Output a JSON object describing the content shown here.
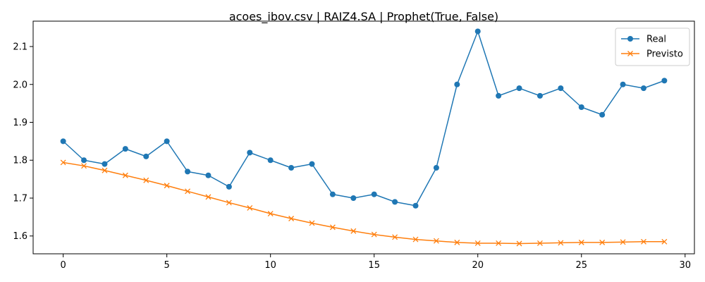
{
  "chart_data": {
    "type": "line",
    "title": "acoes_ibov.csv | RAIZ4.SA | Prophet(True, False)",
    "xlabel": "",
    "ylabel": "",
    "x": [
      0,
      1,
      2,
      3,
      4,
      5,
      6,
      7,
      8,
      9,
      10,
      11,
      12,
      13,
      14,
      15,
      16,
      17,
      18,
      19,
      20,
      21,
      22,
      23,
      24,
      25,
      26,
      27,
      28,
      29
    ],
    "xlim": [
      -1.45,
      30.45
    ],
    "ylim": [
      1.553,
      2.167
    ],
    "xticks": [
      0,
      5,
      10,
      15,
      20,
      25,
      30
    ],
    "xtick_labels": [
      "0",
      "5",
      "10",
      "15",
      "20",
      "25",
      "30"
    ],
    "yticks": [
      1.6,
      1.7,
      1.8,
      1.9,
      2.0,
      2.1
    ],
    "ytick_labels": [
      "1.6",
      "1.7",
      "1.8",
      "1.9",
      "2.0",
      "2.1"
    ],
    "grid": false,
    "legend_position": "top-right",
    "series": [
      {
        "name": "Real",
        "color": "#1f77b4",
        "marker": "circle",
        "values": [
          1.85,
          1.8,
          1.79,
          1.83,
          1.81,
          1.85,
          1.77,
          1.76,
          1.73,
          1.82,
          1.8,
          1.78,
          1.79,
          1.71,
          1.7,
          1.71,
          1.69,
          1.68,
          1.78,
          2.0,
          2.14,
          1.97,
          1.99,
          1.97,
          1.99,
          1.94,
          1.92,
          2.0,
          1.99,
          2.01
        ]
      },
      {
        "name": "Previsto",
        "color": "#ff7f0e",
        "marker": "x",
        "values": [
          1.794,
          1.785,
          1.773,
          1.76,
          1.747,
          1.733,
          1.718,
          1.703,
          1.688,
          1.674,
          1.659,
          1.646,
          1.634,
          1.623,
          1.613,
          1.604,
          1.597,
          1.591,
          1.587,
          1.583,
          1.581,
          1.581,
          1.58,
          1.581,
          1.582,
          1.583,
          1.583,
          1.584,
          1.585,
          1.585
        ]
      }
    ]
  }
}
